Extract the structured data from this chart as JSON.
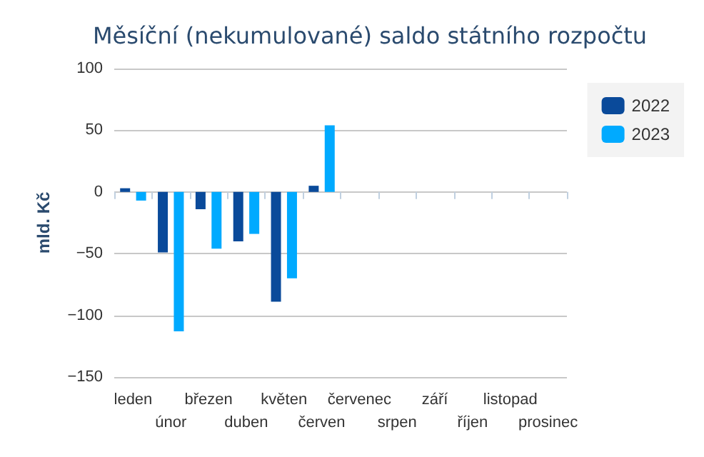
{
  "chart_data": {
    "type": "bar",
    "title": "Měsíční (nekumulované) saldo státního rozpočtu",
    "ylabel": "mld. Kč",
    "categories": [
      "leden",
      "únor",
      "březen",
      "duben",
      "květen",
      "červen",
      "červenec",
      "srpen",
      "září",
      "říjen",
      "listopad",
      "prosinec"
    ],
    "series": [
      {
        "name": "2022",
        "color": "#0a4a9a",
        "values": [
          3,
          -49,
          -14,
          -40,
          -89,
          5,
          null,
          null,
          null,
          null,
          null,
          null
        ]
      },
      {
        "name": "2023",
        "color": "#00aaff",
        "values": [
          -7,
          -113,
          -46,
          -34,
          -70,
          54,
          null,
          null,
          null,
          null,
          null,
          null
        ]
      }
    ],
    "ylim": [
      -150,
      100
    ],
    "yticks": [
      -150,
      -100,
      -50,
      0,
      50,
      100
    ],
    "grid": "y",
    "legend": "top right"
  }
}
